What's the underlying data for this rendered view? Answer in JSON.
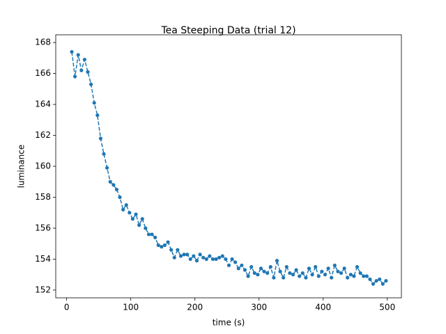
{
  "chart_data": {
    "type": "line",
    "title": "Tea Steeping Data (trial 12)",
    "x_label": "time (s)",
    "y_label": "luminance",
    "color": "#1f77b4",
    "linestyle": "dashed",
    "marker": "circle",
    "x": [
      8,
      13,
      18,
      23,
      28,
      33,
      38,
      43,
      48,
      53,
      58,
      63,
      68,
      73,
      78,
      83,
      88,
      93,
      98,
      103,
      108,
      113,
      118,
      123,
      128,
      133,
      138,
      143,
      148,
      153,
      158,
      163,
      168,
      173,
      178,
      183,
      188,
      193,
      198,
      203,
      208,
      213,
      218,
      223,
      228,
      233,
      238,
      243,
      248,
      253,
      258,
      263,
      268,
      273,
      278,
      283,
      288,
      293,
      298,
      303,
      308,
      313,
      318,
      323,
      328,
      333,
      338,
      343,
      348,
      353,
      358,
      363,
      368,
      373,
      378,
      383,
      388,
      393,
      398,
      403,
      408,
      413,
      418,
      423,
      428,
      433,
      438,
      443,
      448,
      453,
      458,
      463,
      468,
      473,
      478,
      483,
      488,
      493,
      498
    ],
    "values": [
      167.4,
      165.8,
      167.2,
      166.2,
      166.9,
      166.1,
      165.3,
      164.1,
      163.3,
      161.8,
      160.8,
      159.9,
      159.0,
      158.8,
      158.5,
      158.0,
      157.2,
      157.5,
      157.0,
      156.6,
      156.9,
      156.2,
      156.6,
      156.0,
      155.6,
      155.6,
      155.4,
      154.9,
      154.8,
      154.9,
      155.1,
      154.6,
      154.1,
      154.6,
      154.2,
      154.3,
      154.3,
      154.0,
      154.2,
      153.9,
      154.3,
      154.1,
      154.0,
      154.2,
      154.0,
      154.0,
      154.1,
      154.2,
      154.0,
      153.6,
      154.0,
      153.8,
      153.4,
      153.6,
      153.3,
      152.9,
      153.5,
      153.1,
      153.0,
      153.4,
      153.2,
      153.1,
      153.5,
      152.8,
      153.9,
      153.2,
      152.8,
      153.5,
      153.1,
      153.0,
      153.3,
      152.9,
      153.1,
      152.8,
      153.4,
      153.0,
      153.5,
      152.9,
      153.2,
      153.0,
      153.4,
      152.8,
      153.6,
      153.2,
      153.1,
      153.4,
      152.8,
      153.0,
      152.9,
      153.5,
      153.1,
      152.9,
      152.9,
      152.7,
      152.4,
      152.6,
      152.7,
      152.4,
      152.6
    ],
    "xlim": [
      -17,
      522
    ],
    "ylim": [
      151.5,
      168.5
    ],
    "xticks": [
      0,
      100,
      200,
      300,
      400,
      500
    ],
    "yticks": [
      152,
      154,
      156,
      158,
      160,
      162,
      164,
      166,
      168
    ]
  }
}
